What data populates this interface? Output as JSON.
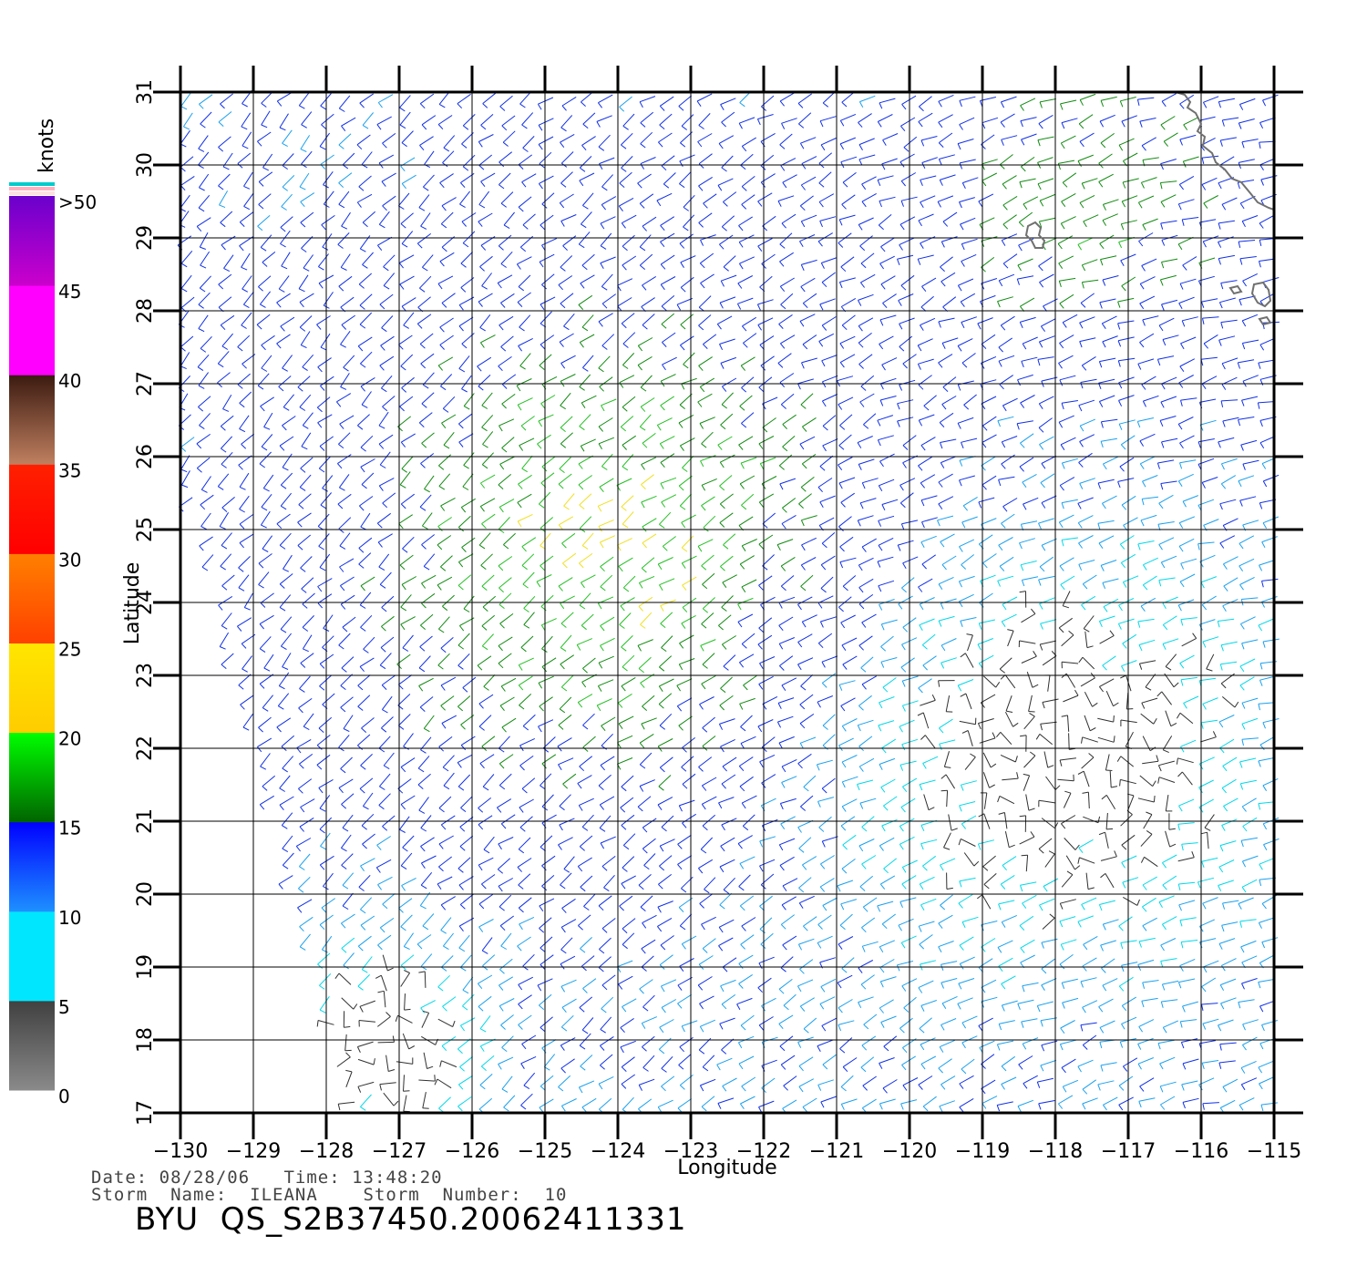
{
  "colorbar": {
    "unit": "knots",
    "labels": [
      ">50",
      "45",
      "40",
      "35",
      "30",
      "25",
      "20",
      "15",
      "10",
      "5",
      "0"
    ],
    "segments": [
      {
        "from": 0,
        "to": 5,
        "top": "#404040",
        "bottom": "#8a8a8a"
      },
      {
        "from": 5,
        "to": 10,
        "top": "#00e6ff",
        "bottom": "#00e6ff"
      },
      {
        "from": 10,
        "to": 15,
        "top": "#0000ff",
        "bottom": "#1e90ff"
      },
      {
        "from": 15,
        "to": 20,
        "top": "#00ff00",
        "bottom": "#006400"
      },
      {
        "from": 20,
        "to": 25,
        "top": "#ffe600",
        "bottom": "#ffcc00"
      },
      {
        "from": 25,
        "to": 30,
        "top": "#ff8000",
        "bottom": "#ff4000"
      },
      {
        "from": 30,
        "to": 35,
        "top": "#ff2000",
        "bottom": "#ff0000"
      },
      {
        "from": 35,
        "to": 40,
        "top": "#3b1a10",
        "bottom": "#c08060"
      },
      {
        "from": 40,
        "to": 45,
        "top": "#ff00ff",
        "bottom": "#ff00ff"
      },
      {
        "from": 45,
        "to": 50,
        "top": "#6a00cc",
        "bottom": "#cc00cc"
      }
    ],
    "cap_colors": [
      "#00cccc",
      "#ffb0c0",
      "#ffe0e0"
    ]
  },
  "map": {
    "lon_range": [
      -130,
      -115
    ],
    "lat_range": [
      17,
      31
    ],
    "lon_ticks": [
      "-130",
      "-129",
      "-128",
      "-127",
      "-126",
      "-125",
      "-124",
      "-123",
      "-122",
      "-121",
      "-120",
      "-119",
      "-118",
      "-117",
      "-116",
      "-115"
    ],
    "lat_ticks": [
      "17",
      "18",
      "19",
      "20",
      "21",
      "22",
      "23",
      "24",
      "25",
      "26",
      "27",
      "28",
      "29",
      "30",
      "31"
    ],
    "xlabel": "Longitude",
    "ylabel": "Latitude",
    "grid": true,
    "coastline_color": "#707070"
  },
  "info": {
    "date_line": "Date: 08/28/06   Time: 13:48:20",
    "storm_line": "Storm  Name:  ILEANA    Storm  Number:  10",
    "title": "BYU  QS_S2B37450.20062411331"
  }
}
